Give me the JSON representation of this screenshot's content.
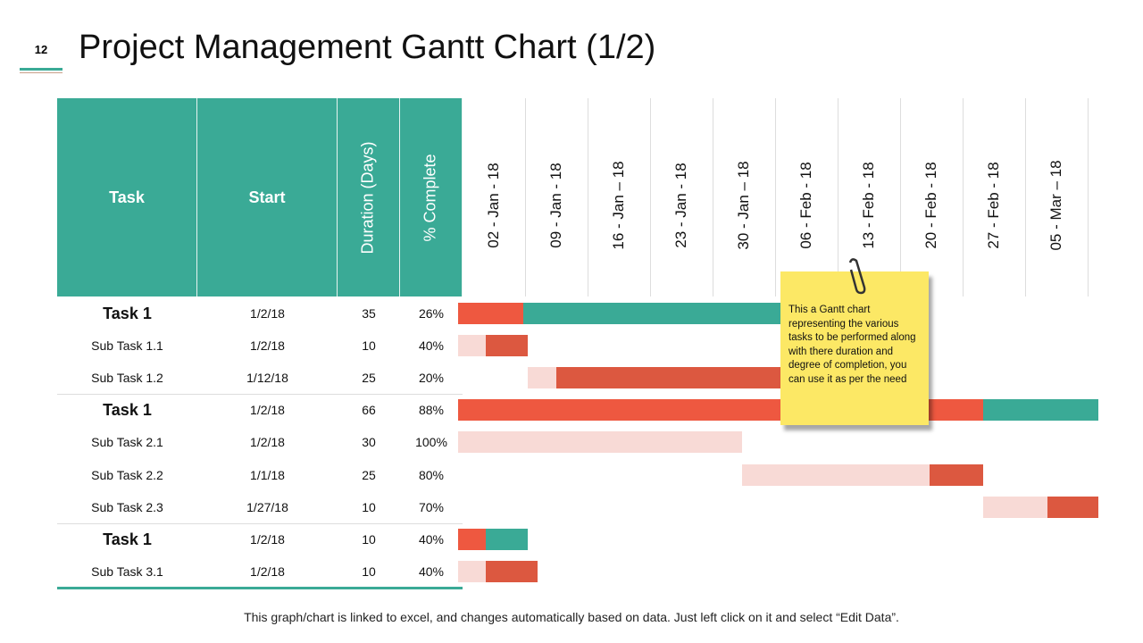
{
  "page_number": "12",
  "title": "Project Management Gantt Chart (1/2)",
  "footer": "This graph/chart is linked to excel, and changes automatically  based on data. Just left click on it and select “Edit Data”.",
  "note": "This a Gantt chart representing the various tasks to be performed along with there duration and degree of completion, you can use it as per the need",
  "chart_data": {
    "type": "gantt",
    "columns": [
      "Task",
      "Start",
      "Duration (Days)",
      "% Complete"
    ],
    "timeline": [
      "02 - Jan - 18",
      "09 - Jan - 18",
      "16 - Jan – 18",
      "23 - Jan - 18",
      "30 - Jan – 18",
      "06 - Feb - 18",
      "13 - Feb - 18",
      "20 - Feb - 18",
      "27 - Feb - 18",
      "05 - Mar – 18"
    ],
    "colors": {
      "task_done": "#ee5840",
      "task_remaining": "#3aaa96",
      "sub_done": "#f8dad6",
      "sub_remaining": "#dc5840"
    },
    "rows": [
      {
        "task": "Task 1",
        "start": "1/2/18",
        "duration": "35",
        "pct": "26%",
        "main": true,
        "bar_start_day": 0,
        "done_days": 6.7,
        "remaining_days": 28.3
      },
      {
        "task": "Sub Task 1.1",
        "start": "1/2/18",
        "duration": "10",
        "pct": "40%",
        "main": false,
        "bar_start_day": 0,
        "done_days": 2.9,
        "remaining_days": 4.3
      },
      {
        "task": "Sub Task 1.2",
        "start": "1/12/18",
        "duration": "25",
        "pct": "20%",
        "main": false,
        "bar_start_day": 7.2,
        "done_days": 2.9,
        "remaining_days": 25
      },
      {
        "task": "Task 1",
        "start": "1/2/18",
        "duration": "66",
        "pct": "88%",
        "main": true,
        "bar_start_day": 0,
        "done_days": 54.1,
        "remaining_days": 11.9
      },
      {
        "task": "Sub Task 2.1",
        "start": "1/2/18",
        "duration": "30",
        "pct": "100%",
        "main": false,
        "bar_start_day": 0,
        "done_days": 29.3,
        "remaining_days": 0
      },
      {
        "task": "Sub Task 2.2",
        "start": "1/1/18",
        "duration": "25",
        "pct": "80%",
        "main": false,
        "bar_start_day": 29.3,
        "done_days": 19.3,
        "remaining_days": 5.5
      },
      {
        "task": "Sub Task 2.3",
        "start": "1/27/18",
        "duration": "10",
        "pct": "70%",
        "main": false,
        "bar_start_day": 54.1,
        "done_days": 6.7,
        "remaining_days": 5.2
      },
      {
        "task": "Task 1",
        "start": "1/2/18",
        "duration": "10",
        "pct": "40%",
        "main": true,
        "bar_start_day": 0,
        "done_days": 2.9,
        "remaining_days": 4.3
      },
      {
        "task": "Sub Task 3.1",
        "start": "1/2/18",
        "duration": "10",
        "pct": "40%",
        "main": false,
        "bar_start_day": 0,
        "done_days": 2.9,
        "remaining_days": 5.3
      }
    ]
  }
}
